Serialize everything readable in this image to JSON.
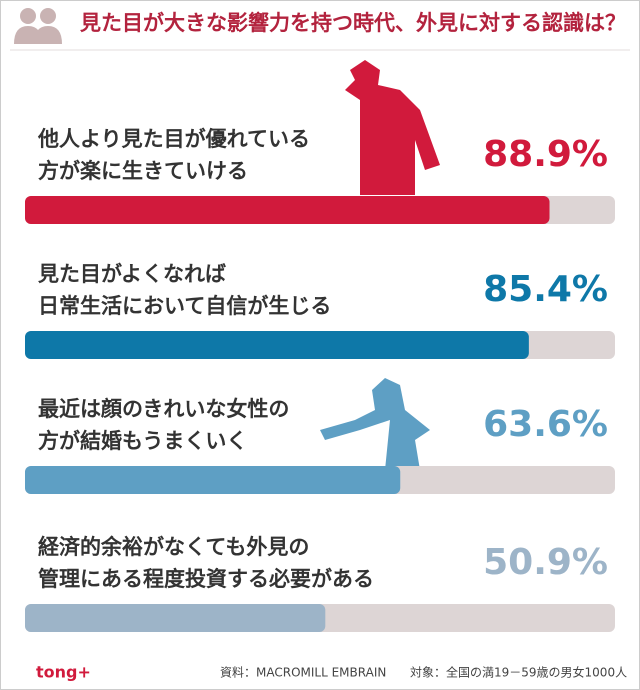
{
  "chart_data": {
    "type": "bar",
    "orientation": "horizontal",
    "title": "見た目が大きな影響力を持つ時代、外見に対する認識は？",
    "categories": [
      [
        "他人より見た目が優れている",
        "方が楽に生きていける"
      ],
      [
        "見た目がよくなれば",
        "日常生活において自信が生じる"
      ],
      [
        "最近は顔のきれいな女性の",
        "方が結婚もうまくいく"
      ],
      [
        "経済的余裕がなくても外見の",
        "管理にある程度投資する必要がある"
      ]
    ],
    "values": [
      88.9,
      85.4,
      63.6,
      50.9
    ],
    "value_labels": [
      "88.9%",
      "85.4%",
      "63.6%",
      "50.9%"
    ],
    "colors": [
      "#d11a3c",
      "#0e78a8",
      "#5e9fc4",
      "#9db4c8"
    ],
    "xlim": [
      0,
      100
    ],
    "logo": "tong+",
    "source": "資料：MACROMILL EMBRAIN",
    "note": "対象：全国の満19－59歳の男女1000人"
  }
}
